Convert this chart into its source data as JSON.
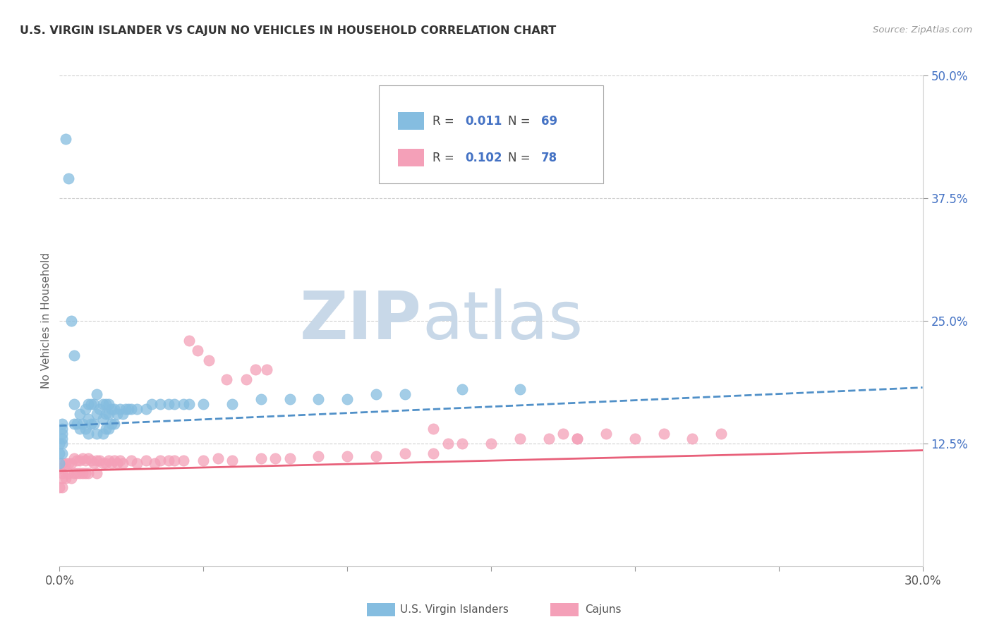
{
  "title": "U.S. VIRGIN ISLANDER VS CAJUN NO VEHICLES IN HOUSEHOLD CORRELATION CHART",
  "source": "Source: ZipAtlas.com",
  "ylabel": "No Vehicles in Household",
  "xlim": [
    0.0,
    0.3
  ],
  "ylim": [
    0.0,
    0.5
  ],
  "ytick_labels": [
    "12.5%",
    "25.0%",
    "37.5%",
    "50.0%"
  ],
  "ytick_positions": [
    0.125,
    0.25,
    0.375,
    0.5
  ],
  "xtick_positions": [
    0.0,
    0.05,
    0.1,
    0.15,
    0.2,
    0.25,
    0.3
  ],
  "color_blue": "#85bde0",
  "color_pink": "#f4a0b8",
  "color_blue_line": "#5090c8",
  "color_pink_line": "#e8607a",
  "color_blue_text": "#4472c4",
  "bg_color": "#ffffff",
  "watermark_zip": "ZIP",
  "watermark_atlas": "atlas",
  "watermark_color": "#c8d8e8",
  "blue_scatter_x": [
    0.002,
    0.003,
    0.004,
    0.005,
    0.005,
    0.005,
    0.006,
    0.007,
    0.007,
    0.008,
    0.009,
    0.009,
    0.01,
    0.01,
    0.01,
    0.011,
    0.011,
    0.012,
    0.012,
    0.013,
    0.013,
    0.013,
    0.014,
    0.015,
    0.015,
    0.015,
    0.016,
    0.016,
    0.016,
    0.017,
    0.017,
    0.017,
    0.018,
    0.018,
    0.019,
    0.019,
    0.02,
    0.021,
    0.022,
    0.023,
    0.024,
    0.025,
    0.027,
    0.03,
    0.032,
    0.035,
    0.038,
    0.04,
    0.043,
    0.045,
    0.05,
    0.06,
    0.07,
    0.08,
    0.09,
    0.1,
    0.11,
    0.12,
    0.14,
    0.16,
    0.001,
    0.001,
    0.001,
    0.001,
    0.001,
    0.001,
    0.0,
    0.0,
    0.0
  ],
  "blue_scatter_y": [
    0.435,
    0.395,
    0.25,
    0.215,
    0.165,
    0.145,
    0.145,
    0.155,
    0.14,
    0.145,
    0.16,
    0.14,
    0.165,
    0.15,
    0.135,
    0.165,
    0.145,
    0.165,
    0.145,
    0.175,
    0.155,
    0.135,
    0.16,
    0.165,
    0.15,
    0.135,
    0.165,
    0.155,
    0.14,
    0.165,
    0.155,
    0.14,
    0.16,
    0.145,
    0.16,
    0.145,
    0.155,
    0.16,
    0.155,
    0.16,
    0.16,
    0.16,
    0.16,
    0.16,
    0.165,
    0.165,
    0.165,
    0.165,
    0.165,
    0.165,
    0.165,
    0.165,
    0.17,
    0.17,
    0.17,
    0.17,
    0.175,
    0.175,
    0.18,
    0.18,
    0.145,
    0.14,
    0.135,
    0.13,
    0.125,
    0.115,
    0.125,
    0.115,
    0.105
  ],
  "pink_scatter_x": [
    0.0,
    0.0,
    0.001,
    0.001,
    0.001,
    0.001,
    0.002,
    0.002,
    0.003,
    0.003,
    0.004,
    0.004,
    0.005,
    0.005,
    0.006,
    0.006,
    0.007,
    0.007,
    0.008,
    0.008,
    0.009,
    0.009,
    0.01,
    0.01,
    0.011,
    0.012,
    0.013,
    0.013,
    0.014,
    0.015,
    0.016,
    0.017,
    0.018,
    0.019,
    0.02,
    0.021,
    0.022,
    0.025,
    0.027,
    0.03,
    0.033,
    0.035,
    0.038,
    0.04,
    0.043,
    0.05,
    0.055,
    0.06,
    0.07,
    0.075,
    0.08,
    0.09,
    0.1,
    0.11,
    0.12,
    0.13,
    0.14,
    0.15,
    0.16,
    0.17,
    0.175,
    0.18,
    0.19,
    0.2,
    0.21,
    0.22,
    0.23,
    0.13,
    0.135,
    0.18,
    0.045,
    0.048,
    0.052,
    0.058,
    0.065,
    0.068,
    0.072
  ],
  "pink_scatter_y": [
    0.1,
    0.08,
    0.105,
    0.095,
    0.09,
    0.08,
    0.105,
    0.09,
    0.105,
    0.095,
    0.105,
    0.09,
    0.11,
    0.095,
    0.108,
    0.095,
    0.108,
    0.095,
    0.11,
    0.095,
    0.108,
    0.095,
    0.11,
    0.095,
    0.108,
    0.105,
    0.108,
    0.095,
    0.108,
    0.105,
    0.105,
    0.108,
    0.105,
    0.108,
    0.105,
    0.108,
    0.105,
    0.108,
    0.105,
    0.108,
    0.105,
    0.108,
    0.108,
    0.108,
    0.108,
    0.108,
    0.11,
    0.108,
    0.11,
    0.11,
    0.11,
    0.112,
    0.112,
    0.112,
    0.115,
    0.115,
    0.125,
    0.125,
    0.13,
    0.13,
    0.135,
    0.13,
    0.135,
    0.13,
    0.135,
    0.13,
    0.135,
    0.14,
    0.125,
    0.13,
    0.23,
    0.22,
    0.21,
    0.19,
    0.19,
    0.2,
    0.2
  ],
  "blue_line_x": [
    0.0,
    0.3
  ],
  "blue_line_y": [
    0.143,
    0.182
  ],
  "pink_line_x": [
    0.0,
    0.3
  ],
  "pink_line_y": [
    0.097,
    0.118
  ],
  "grid_color": "#d0d0d0",
  "legend_label_blue": "U.S. Virgin Islanders",
  "legend_label_pink": "Cajuns"
}
